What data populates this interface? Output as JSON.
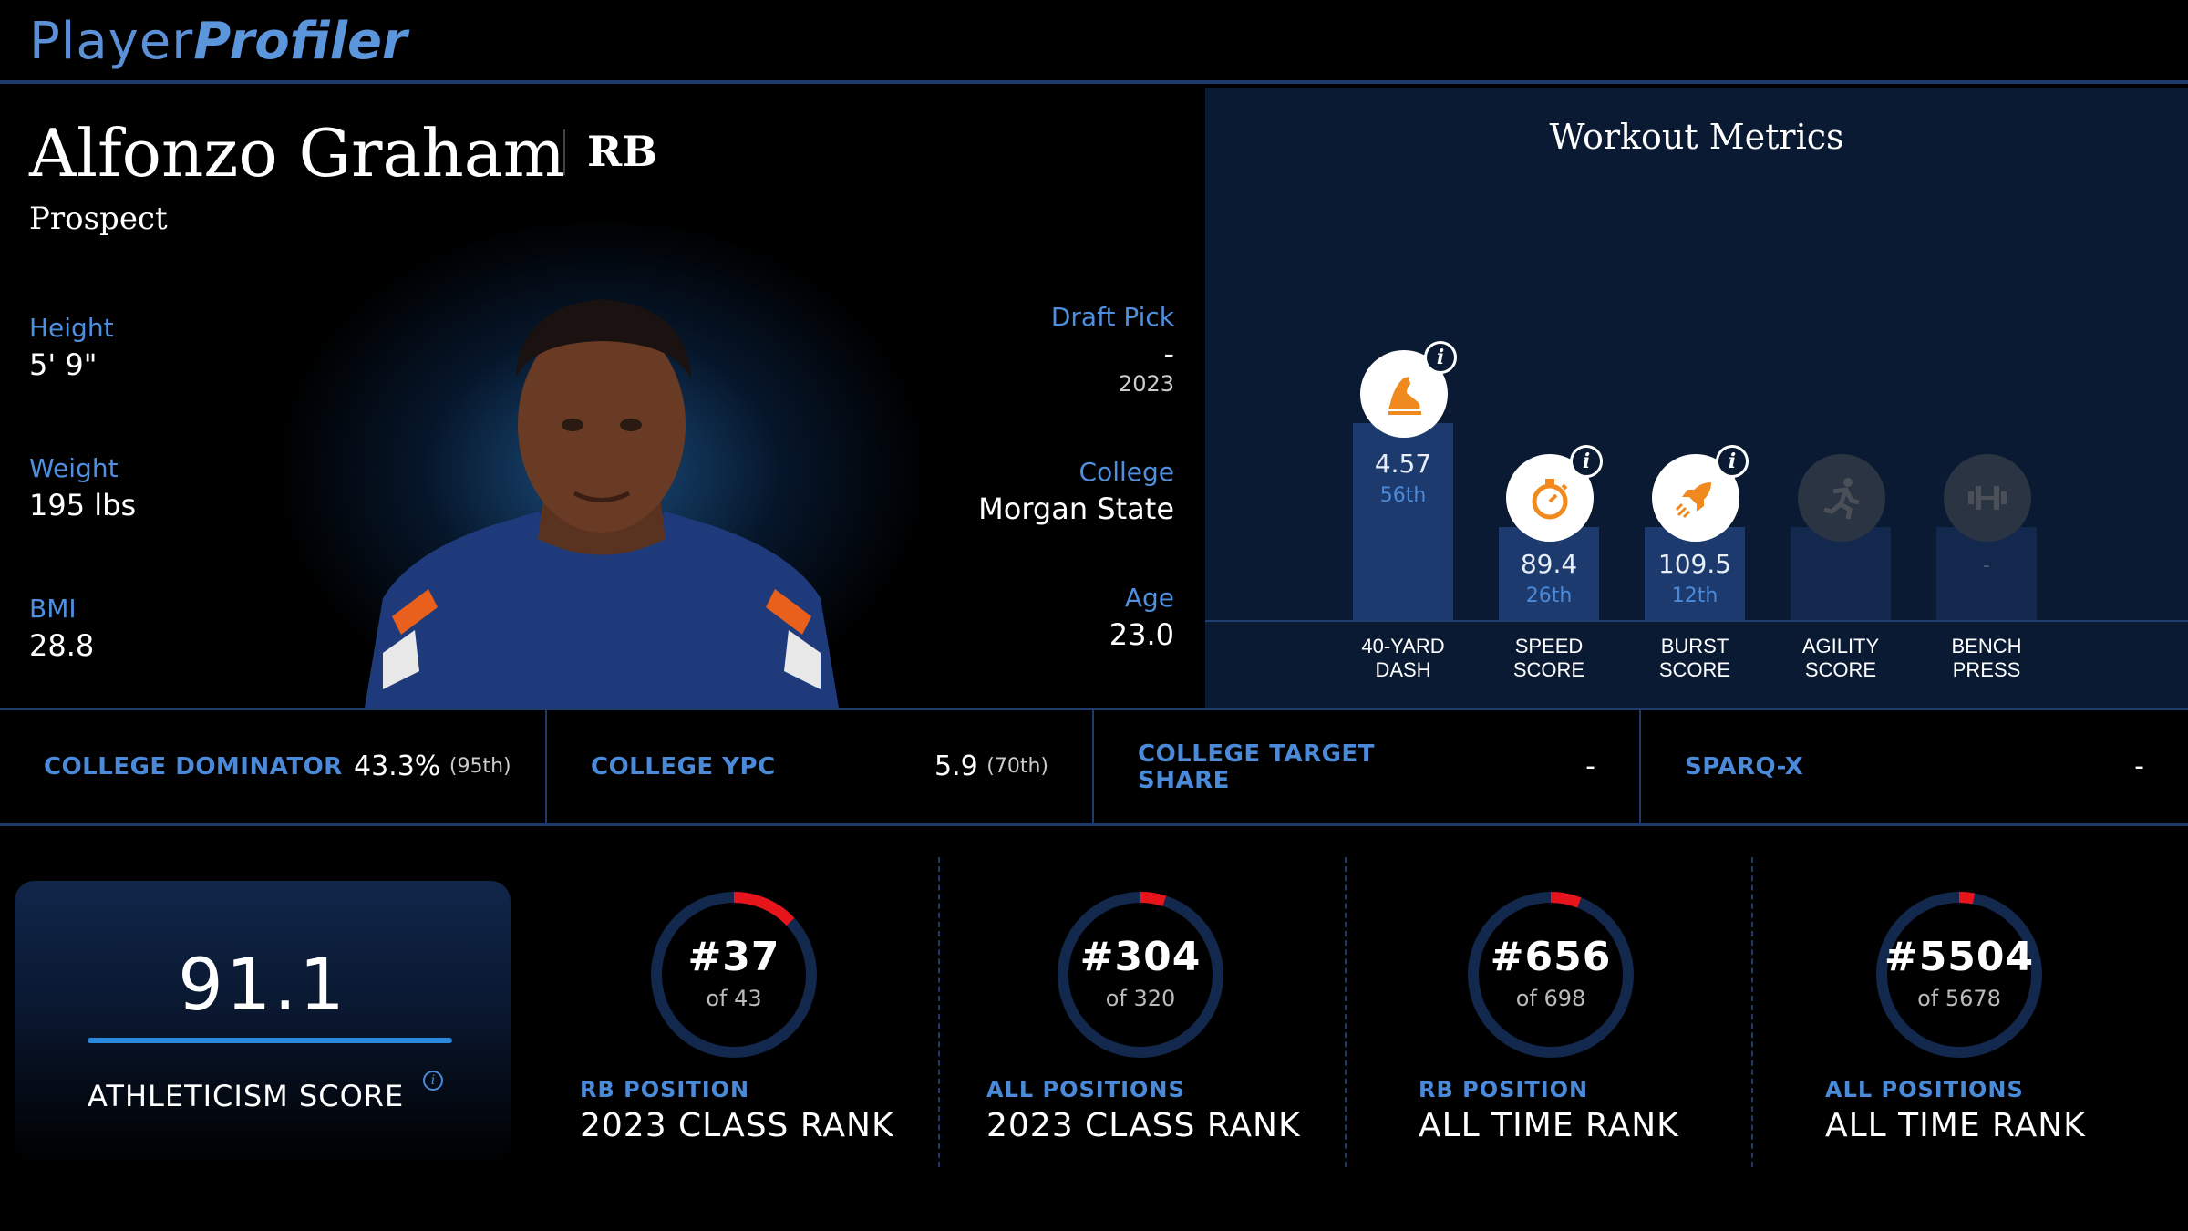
{
  "logo": {
    "part1": "Player",
    "part2": "Profiler"
  },
  "player": {
    "name": "Alfonzo Graham",
    "position": "RB",
    "status": "Prospect",
    "height_label": "Height",
    "height": "5' 9\"",
    "weight_label": "Weight",
    "weight": "195 lbs",
    "bmi_label": "BMI",
    "bmi": "28.8",
    "draft_label": "Draft Pick",
    "draft_pick": "-",
    "draft_year": "2023",
    "college_label": "College",
    "college": "Morgan State",
    "age_label": "Age",
    "age": "23.0"
  },
  "workout": {
    "title": "Workout Metrics",
    "metrics": [
      {
        "label1": "40-YARD",
        "label2": "DASH",
        "value": "4.57",
        "rank": "56th",
        "percentile": 56,
        "icon": "running-shoe-icon",
        "has_info": true
      },
      {
        "label1": "SPEED",
        "label2": "SCORE",
        "value": "89.4",
        "rank": "26th",
        "percentile": 26,
        "icon": "stopwatch-icon",
        "has_info": true
      },
      {
        "label1": "BURST",
        "label2": "SCORE",
        "value": "109.5",
        "rank": "12th",
        "percentile": 12,
        "icon": "rocket-icon",
        "has_info": true
      },
      {
        "label1": "AGILITY",
        "label2": "SCORE",
        "value": "",
        "rank": "",
        "percentile": null,
        "icon": "running-person-icon",
        "has_info": false
      },
      {
        "label1": "BENCH",
        "label2": "PRESS",
        "value": "-",
        "rank": "",
        "percentile": null,
        "icon": "dumbbell-icon",
        "has_info": false
      }
    ]
  },
  "college_stats": [
    {
      "label": "COLLEGE DOMINATOR",
      "value": "43.3%",
      "pct": "(95th)"
    },
    {
      "label": "COLLEGE YPC",
      "value": "5.9",
      "pct": "(70th)"
    },
    {
      "label_line1": "COLLEGE TARGET",
      "label_line2": "SHARE",
      "value": "-",
      "pct": ""
    },
    {
      "label": "SPARQ-X",
      "value": "-",
      "pct": ""
    }
  ],
  "athleticism": {
    "score": "91.1",
    "label": "ATHLETICISM SCORE",
    "info": "i"
  },
  "ranks": [
    {
      "rank": "#37",
      "of": "of 43",
      "sub": "RB POSITION",
      "title": "2023 CLASS RANK",
      "fraction": 0.13
    },
    {
      "rank": "#304",
      "of": "of 320",
      "sub": "ALL POSITIONS",
      "title": "2023 CLASS RANK",
      "fraction": 0.05
    },
    {
      "rank": "#656",
      "of": "of 698",
      "sub": "RB POSITION",
      "title": "ALL TIME RANK",
      "fraction": 0.06
    },
    {
      "rank": "#5504",
      "of": "of 5678",
      "sub": "ALL POSITIONS",
      "title": "ALL TIME RANK",
      "fraction": 0.03
    }
  ],
  "colors": {
    "accent_blue": "#4a8ad9",
    "rank_red": "#e8141c",
    "metric_orange": "#f08a1e",
    "track": "#13284d"
  }
}
